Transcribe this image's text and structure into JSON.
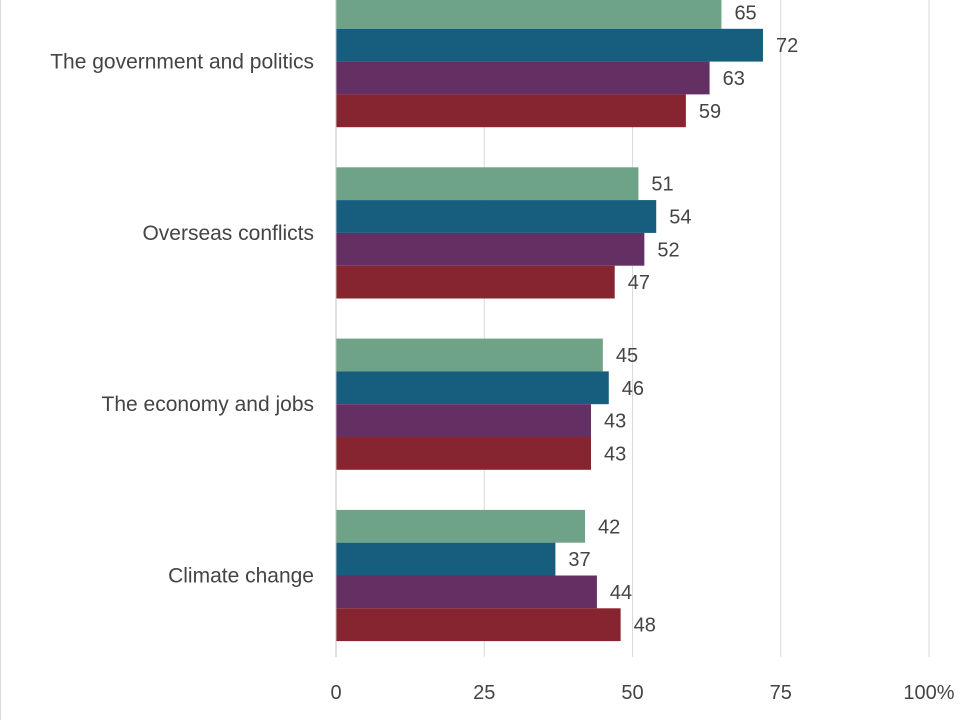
{
  "chart_data": {
    "type": "bar",
    "orientation": "horizontal",
    "categories": [
      "The government and politics",
      "Overseas conflicts",
      "The economy and jobs",
      "Climate change"
    ],
    "series": [
      {
        "color": "#6fa387",
        "values": [
          65,
          51,
          45,
          42
        ]
      },
      {
        "color": "#165d7e",
        "values": [
          72,
          54,
          46,
          37
        ]
      },
      {
        "color": "#642f63",
        "values": [
          63,
          52,
          43,
          44
        ]
      },
      {
        "color": "#86242f",
        "values": [
          59,
          47,
          43,
          48
        ]
      }
    ],
    "xlim": [
      0,
      100
    ],
    "xticks": [
      0,
      25,
      50,
      75,
      100
    ],
    "xtick_labels": [
      "0",
      "25",
      "50",
      "75",
      "100%"
    ],
    "grid": true,
    "legend": "none"
  }
}
